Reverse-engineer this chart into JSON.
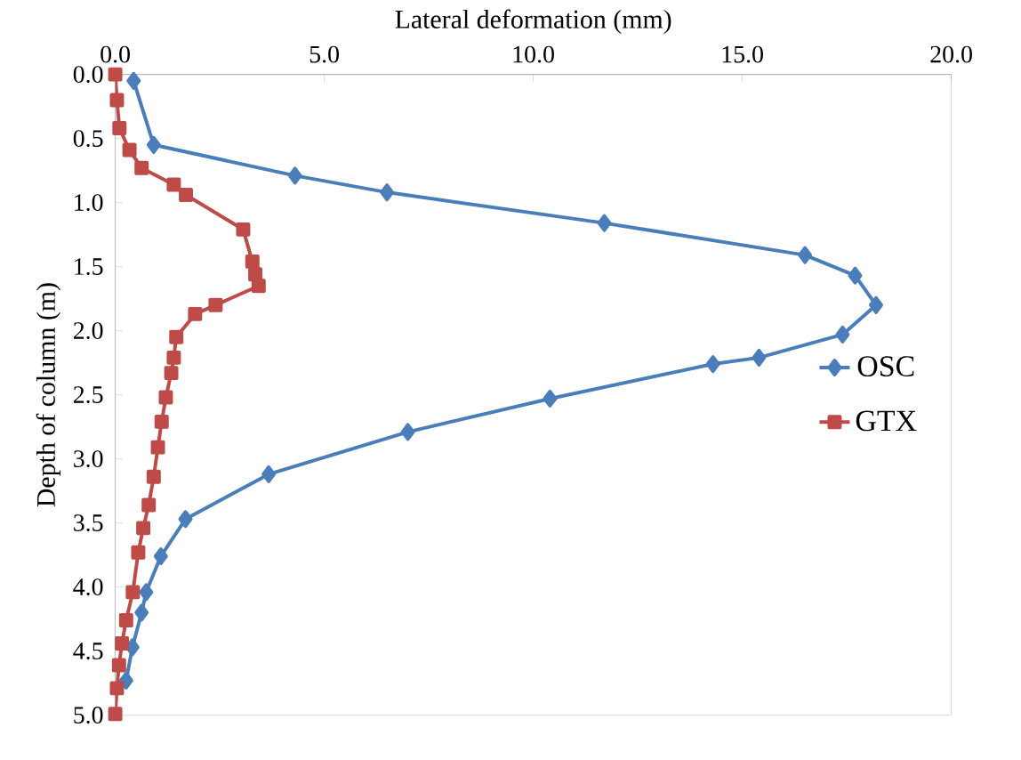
{
  "chart_data": {
    "type": "line",
    "xlabel": "Lateral deformation (mm)",
    "ylabel": "Depth of column (m)",
    "xlim": [
      0,
      20
    ],
    "xticks": [
      {
        "value": 0,
        "label": "0.0"
      },
      {
        "value": 5,
        "label": "5.0"
      },
      {
        "value": 10,
        "label": "10.0"
      },
      {
        "value": 15,
        "label": "15.0"
      },
      {
        "value": 20,
        "label": "20.0"
      }
    ],
    "ylim": [
      5,
      0
    ],
    "yticks": [
      {
        "value": 0,
        "label": "0.0"
      },
      {
        "value": 0.5,
        "label": "0.5"
      },
      {
        "value": 1,
        "label": "1.0"
      },
      {
        "value": 1.5,
        "label": "1.5"
      },
      {
        "value": 2,
        "label": "2.0"
      },
      {
        "value": 2.5,
        "label": "2.5"
      },
      {
        "value": 3,
        "label": "3.0"
      },
      {
        "value": 3.5,
        "label": "3.5"
      },
      {
        "value": 4,
        "label": "4.0"
      },
      {
        "value": 4.5,
        "label": "4.5"
      },
      {
        "value": 5,
        "label": "5.0"
      }
    ],
    "grid": false,
    "legend": "right",
    "series": [
      {
        "name": "OSC",
        "color": "#4a7ebb",
        "marker": "diamond",
        "x": [
          0.44,
          0.92,
          4.3,
          6.5,
          11.7,
          16.5,
          17.7,
          18.2,
          17.4,
          15.4,
          14.3,
          10.4,
          7.0,
          3.67,
          1.68,
          1.09,
          0.74,
          0.63,
          0.41,
          0.26
        ],
        "values": [
          0.05,
          0.55,
          0.79,
          0.92,
          1.16,
          1.41,
          1.57,
          1.8,
          2.03,
          2.21,
          2.26,
          2.53,
          2.79,
          3.12,
          3.47,
          3.76,
          4.04,
          4.2,
          4.47,
          4.73
        ]
      },
      {
        "name": "GTX",
        "color": "#be4b48",
        "marker": "square",
        "x": [
          0,
          0.04,
          0.1,
          0.34,
          0.63,
          1.4,
          1.69,
          3.06,
          3.28,
          3.35,
          3.43,
          2.4,
          1.91,
          1.46,
          1.4,
          1.34,
          1.21,
          1.11,
          1.02,
          0.92,
          0.8,
          0.67,
          0.55,
          0.42,
          0.26,
          0.16,
          0.09,
          0.04,
          0
        ],
        "values": [
          0,
          0.2,
          0.42,
          0.59,
          0.73,
          0.86,
          0.94,
          1.21,
          1.46,
          1.56,
          1.65,
          1.8,
          1.87,
          2.05,
          2.21,
          2.33,
          2.52,
          2.71,
          2.91,
          3.14,
          3.36,
          3.54,
          3.73,
          4.04,
          4.26,
          4.44,
          4.61,
          4.79,
          4.99
        ]
      }
    ]
  }
}
